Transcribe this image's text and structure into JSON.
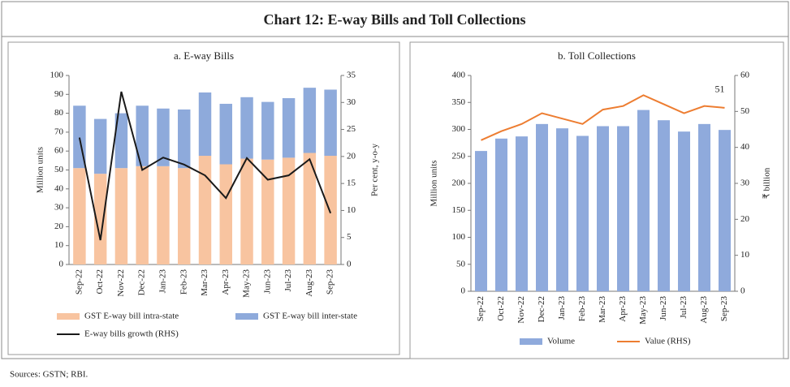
{
  "title": "Chart 12: E-way Bills and Toll Collections",
  "source": "Sources: GSTN; RBI.",
  "chart_data": [
    {
      "type": "bar",
      "stacked": true,
      "title": "a. E-way Bills",
      "categories": [
        "Sep-22",
        "Oct-22",
        "Nov-22",
        "Dec-22",
        "Jan-23",
        "Feb-23",
        "Mar-23",
        "Apr-23",
        "May-23",
        "Jun-23",
        "Jul-23",
        "Aug-23",
        "Sep-23"
      ],
      "series": [
        {
          "name": "GST E-way bill intra-state",
          "color": "#f8c4a0",
          "values": [
            51,
            48,
            51,
            52,
            52,
            51,
            57.5,
            53,
            56,
            55.5,
            56.5,
            59,
            57.5
          ]
        },
        {
          "name": "GST E-way bill inter-state",
          "color": "#8eaadb",
          "values": [
            33,
            29,
            29,
            32,
            30.5,
            31,
            33.5,
            32,
            32.5,
            30.5,
            31.5,
            34.5,
            35
          ]
        },
        {
          "name": "E-way bills growth (RHS)",
          "type": "line",
          "axis": "y2",
          "color": "#1a1a1a",
          "values": [
            23.5,
            4.5,
            32,
            17.5,
            19.8,
            18.5,
            16.5,
            12.3,
            19.7,
            15.7,
            16.5,
            19.5,
            9.5
          ]
        }
      ],
      "ylabel": "Million units",
      "y2label": "Per cent, y-o-y",
      "ylim": [
        0,
        100
      ],
      "yticks": [
        0,
        10,
        20,
        30,
        40,
        50,
        60,
        70,
        80,
        90,
        100
      ],
      "y2lim": [
        0,
        35
      ],
      "y2ticks": [
        0,
        5,
        10,
        15,
        20,
        25,
        30,
        35
      ],
      "grid": false
    },
    {
      "type": "bar",
      "title": "b. Toll Collections",
      "categories": [
        "Sep-22",
        "Oct-22",
        "Nov-22",
        "Dec-22",
        "Jan-23",
        "Feb-23",
        "Mar-23",
        "Apr-23",
        "May-23",
        "Jun-23",
        "Jul-23",
        "Aug-23",
        "Sep-23"
      ],
      "series": [
        {
          "name": "Volume",
          "color": "#8faadc",
          "values": [
            260,
            283,
            287,
            310,
            302,
            288,
            306,
            306,
            336,
            317,
            296,
            310,
            299
          ]
        },
        {
          "name": "Value (RHS)",
          "type": "line",
          "axis": "y2",
          "color": "#ed7d31",
          "values": [
            42,
            44.5,
            46.5,
            49.5,
            48,
            46.5,
            50.5,
            51.5,
            54.5,
            52,
            49.5,
            51.5,
            51
          ]
        }
      ],
      "ylabel": "Million units",
      "y2label": "₹ billion",
      "ylim": [
        0,
        400
      ],
      "yticks": [
        0,
        50,
        100,
        150,
        200,
        250,
        300,
        350,
        400
      ],
      "y2lim": [
        0,
        60
      ],
      "y2ticks": [
        0,
        10,
        20,
        30,
        40,
        50,
        60
      ],
      "grid": false
    }
  ]
}
